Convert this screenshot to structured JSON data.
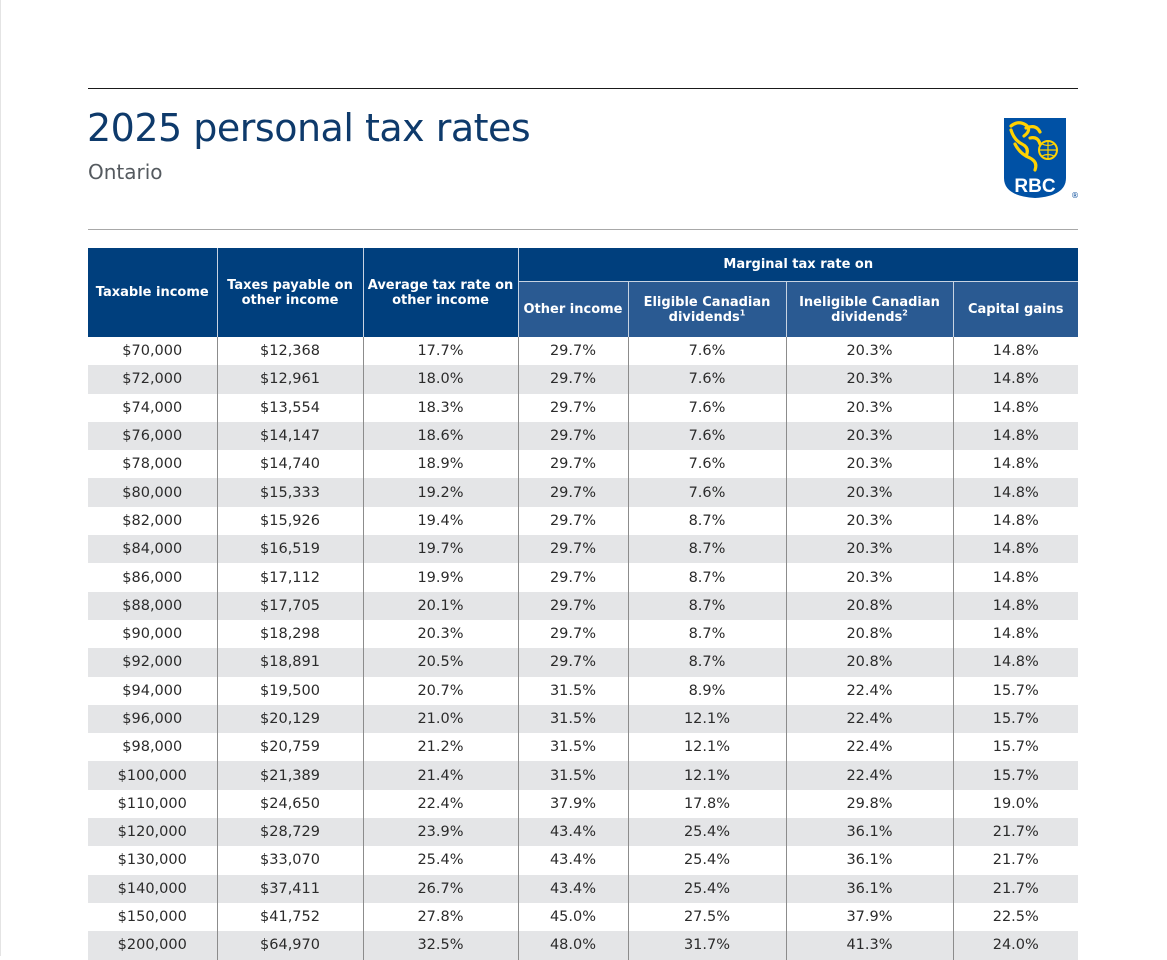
{
  "document": {
    "title": "2025 personal tax rates",
    "subtitle": "Ontario",
    "logo": {
      "icon": "rbc-lion-shield-icon",
      "text": "RBC",
      "registered_mark": "®",
      "colors": {
        "shield": "#0051a5",
        "lion": "#ffd200"
      }
    }
  },
  "colors": {
    "header_dark": "#003f7d",
    "header_sub": "#2a5a92",
    "title": "#0e3a6b",
    "row_stripe": "#e4e5e7"
  },
  "table": {
    "headers": {
      "taxable_income": "Taxable income",
      "taxes_payable": "Taxes payable on other income",
      "average_rate": "Average tax rate on other income",
      "marginal_group": "Marginal tax rate on",
      "other_income": "Other income",
      "eligible_dividends": "Eligible Canadian dividends",
      "eligible_footnote": "1",
      "ineligible_dividends": "Ineligible Canadian dividends",
      "ineligible_footnote": "2",
      "capital_gains": "Capital gains"
    },
    "rows": [
      [
        "$70,000",
        "$12,368",
        "17.7%",
        "29.7%",
        "7.6%",
        "20.3%",
        "14.8%"
      ],
      [
        "$72,000",
        "$12,961",
        "18.0%",
        "29.7%",
        "7.6%",
        "20.3%",
        "14.8%"
      ],
      [
        "$74,000",
        "$13,554",
        "18.3%",
        "29.7%",
        "7.6%",
        "20.3%",
        "14.8%"
      ],
      [
        "$76,000",
        "$14,147",
        "18.6%",
        "29.7%",
        "7.6%",
        "20.3%",
        "14.8%"
      ],
      [
        "$78,000",
        "$14,740",
        "18.9%",
        "29.7%",
        "7.6%",
        "20.3%",
        "14.8%"
      ],
      [
        "$80,000",
        "$15,333",
        "19.2%",
        "29.7%",
        "7.6%",
        "20.3%",
        "14.8%"
      ],
      [
        "$82,000",
        "$15,926",
        "19.4%",
        "29.7%",
        "8.7%",
        "20.3%",
        "14.8%"
      ],
      [
        "$84,000",
        "$16,519",
        "19.7%",
        "29.7%",
        "8.7%",
        "20.3%",
        "14.8%"
      ],
      [
        "$86,000",
        "$17,112",
        "19.9%",
        "29.7%",
        "8.7%",
        "20.3%",
        "14.8%"
      ],
      [
        "$88,000",
        "$17,705",
        "20.1%",
        "29.7%",
        "8.7%",
        "20.8%",
        "14.8%"
      ],
      [
        "$90,000",
        "$18,298",
        "20.3%",
        "29.7%",
        "8.7%",
        "20.8%",
        "14.8%"
      ],
      [
        "$92,000",
        "$18,891",
        "20.5%",
        "29.7%",
        "8.7%",
        "20.8%",
        "14.8%"
      ],
      [
        "$94,000",
        "$19,500",
        "20.7%",
        "31.5%",
        "8.9%",
        "22.4%",
        "15.7%"
      ],
      [
        "$96,000",
        "$20,129",
        "21.0%",
        "31.5%",
        "12.1%",
        "22.4%",
        "15.7%"
      ],
      [
        "$98,000",
        "$20,759",
        "21.2%",
        "31.5%",
        "12.1%",
        "22.4%",
        "15.7%"
      ],
      [
        "$100,000",
        "$21,389",
        "21.4%",
        "31.5%",
        "12.1%",
        "22.4%",
        "15.7%"
      ],
      [
        "$110,000",
        "$24,650",
        "22.4%",
        "37.9%",
        "17.8%",
        "29.8%",
        "19.0%"
      ],
      [
        "$120,000",
        "$28,729",
        "23.9%",
        "43.4%",
        "25.4%",
        "36.1%",
        "21.7%"
      ],
      [
        "$130,000",
        "$33,070",
        "25.4%",
        "43.4%",
        "25.4%",
        "36.1%",
        "21.7%"
      ],
      [
        "$140,000",
        "$37,411",
        "26.7%",
        "43.4%",
        "25.4%",
        "36.1%",
        "21.7%"
      ],
      [
        "$150,000",
        "$41,752",
        "27.8%",
        "45.0%",
        "27.5%",
        "37.9%",
        "22.5%"
      ],
      [
        "$200,000",
        "$64,970",
        "32.5%",
        "48.0%",
        "31.7%",
        "41.3%",
        "24.0%"
      ]
    ]
  }
}
